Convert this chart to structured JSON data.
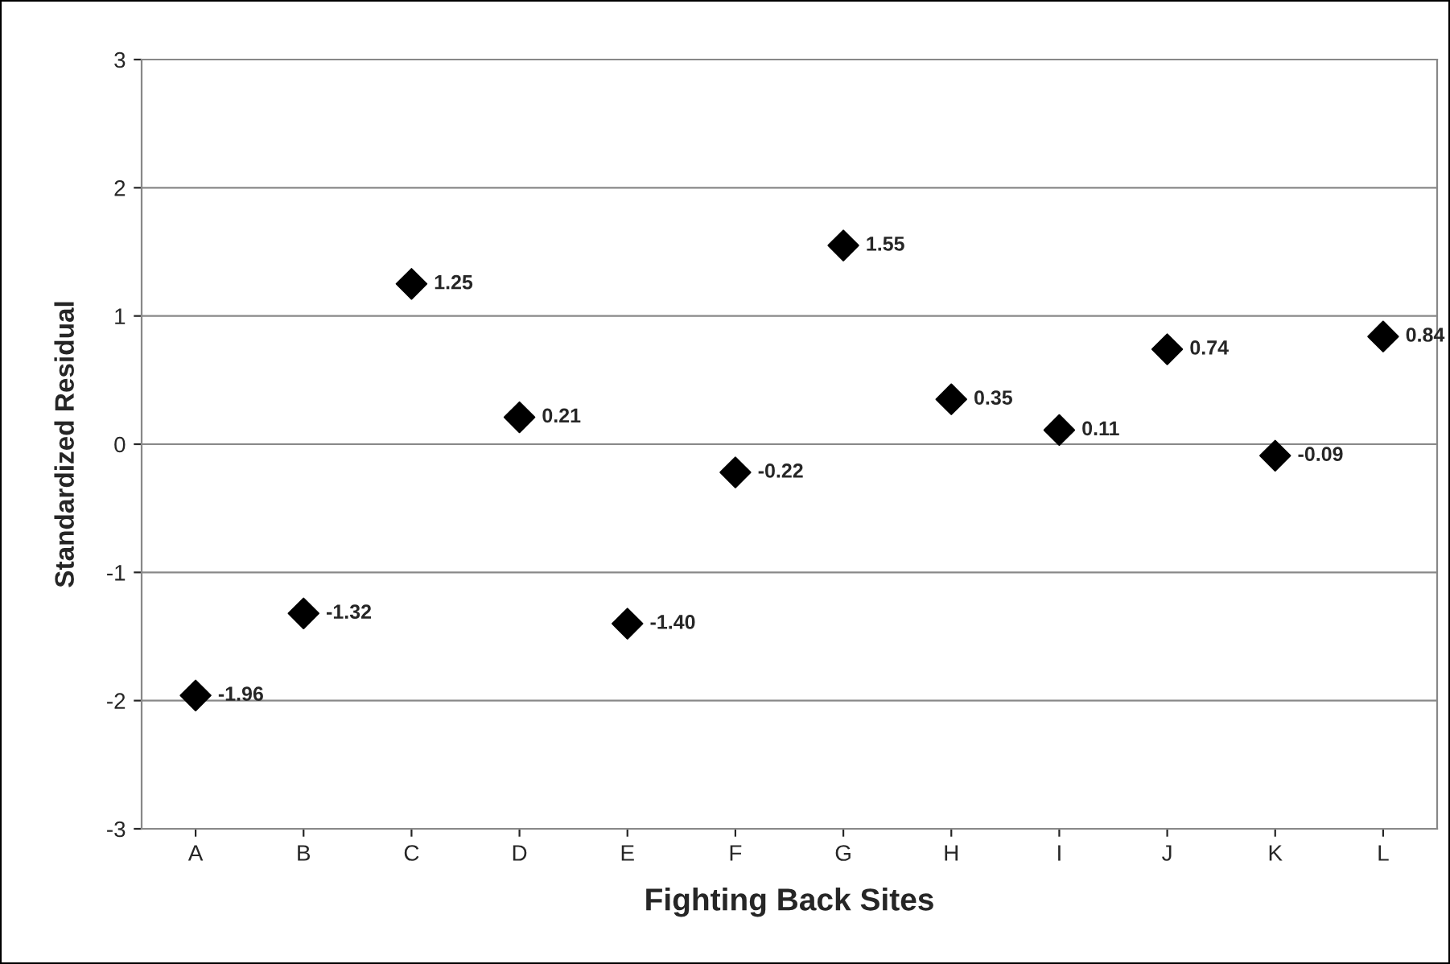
{
  "chart_data": {
    "type": "scatter",
    "xlabel": "Fighting Back Sites",
    "ylabel": "Standardized Residual",
    "categories": [
      "A",
      "B",
      "C",
      "D",
      "E",
      "F",
      "G",
      "H",
      "I",
      "J",
      "K",
      "L"
    ],
    "series": [
      {
        "color": "#000000",
        "values": [
          -1.96,
          -1.32,
          1.25,
          0.21,
          -1.4,
          -0.22,
          1.55,
          0.35,
          0.11,
          0.74,
          -0.09,
          0.84
        ],
        "value_labels": [
          "-1.96",
          "-1.32",
          "1.25",
          "0.21",
          "-1.40",
          "-0.22",
          "1.55",
          "0.35",
          "0.11",
          "0.74",
          "-0.09",
          "0.84"
        ]
      }
    ],
    "ylim": [
      -3,
      3
    ],
    "yticks": [
      -3,
      -2,
      -1,
      0,
      1,
      2,
      3
    ],
    "grid": "y",
    "marker": "diamond",
    "legend": false
  }
}
